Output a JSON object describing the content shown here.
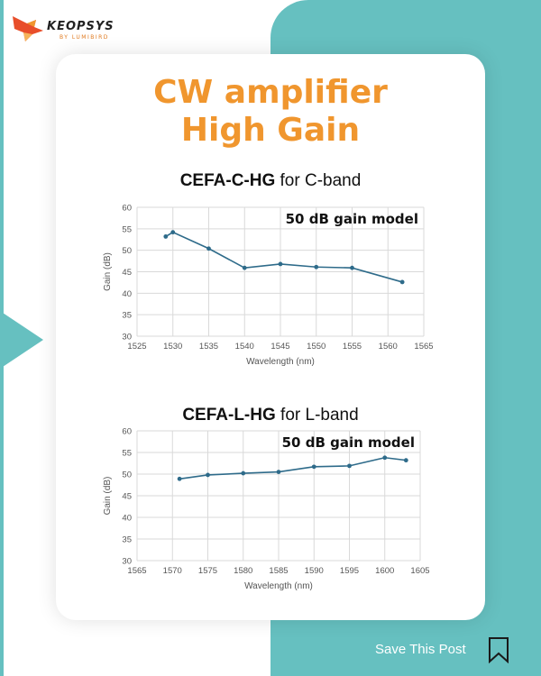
{
  "brand": {
    "name": "KEOPSYS",
    "sub": "BY LUMIBIRD",
    "accent": "#f0962e",
    "teal": "#66c0c0",
    "line_color": "#2e6b8a"
  },
  "headline": {
    "line1": "CW amplifier",
    "line2": "High Gain"
  },
  "save_label": "Save This Post",
  "charts": [
    {
      "title_bold": "CEFA-C-HG",
      "title_rest": " for C-band"
    },
    {
      "title_bold": "CEFA-L-HG",
      "title_rest": " for L-band"
    }
  ],
  "chart_data": [
    {
      "type": "line",
      "annotation": "50 dB gain model",
      "xlabel": "Wavelength (nm)",
      "ylabel": "Gain (dB)",
      "xlim": [
        1525,
        1565
      ],
      "ylim": [
        30,
        60
      ],
      "xticks": [
        1525,
        1530,
        1535,
        1540,
        1545,
        1550,
        1555,
        1560,
        1565
      ],
      "yticks": [
        30,
        35,
        40,
        45,
        50,
        55,
        60
      ],
      "grid": true,
      "x": [
        1529,
        1530,
        1535,
        1540,
        1545,
        1550,
        1555,
        1562
      ],
      "y": [
        53.2,
        54.2,
        50.4,
        45.9,
        46.8,
        46.1,
        45.9,
        42.6
      ]
    },
    {
      "type": "line",
      "annotation": "50 dB gain model",
      "xlabel": "Wavelength (nm)",
      "ylabel": "Gain (dB)",
      "xlim": [
        1565,
        1605
      ],
      "ylim": [
        30,
        60
      ],
      "xticks": [
        1565,
        1570,
        1575,
        1580,
        1585,
        1590,
        1595,
        1600,
        1605
      ],
      "yticks": [
        30,
        35,
        40,
        45,
        50,
        55,
        60
      ],
      "grid": true,
      "x": [
        1571,
        1575,
        1580,
        1585,
        1590,
        1595,
        1600,
        1603
      ],
      "y": [
        48.9,
        49.8,
        50.2,
        50.5,
        51.7,
        51.9,
        53.8,
        53.2
      ]
    }
  ]
}
